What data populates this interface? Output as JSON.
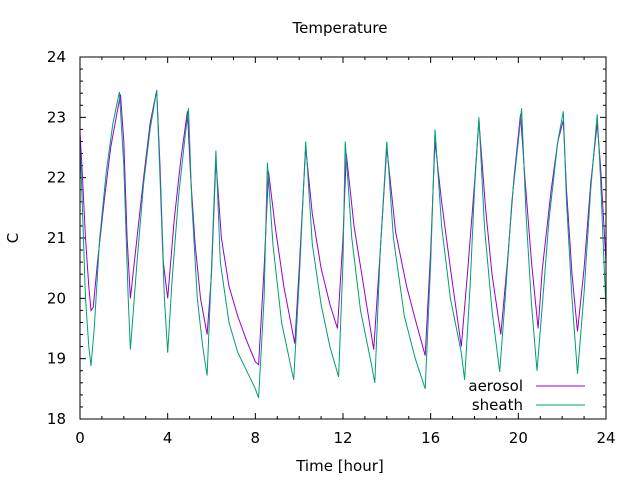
{
  "chart_data": {
    "type": "line",
    "title": "Temperature",
    "xlabel": "Time [hour]",
    "ylabel": "C",
    "xlim": [
      0,
      24
    ],
    "ylim": [
      18,
      24
    ],
    "xticks": [
      0,
      4,
      8,
      12,
      16,
      20,
      24
    ],
    "yticks": [
      18,
      19,
      20,
      21,
      22,
      23,
      24
    ],
    "grid": false,
    "legend_position": "bottom-right",
    "series": [
      {
        "name": "aerosol",
        "color": "#9400d3",
        "points": [
          [
            0.0,
            22.75
          ],
          [
            0.1,
            22.1
          ],
          [
            0.25,
            21.0
          ],
          [
            0.4,
            20.2
          ],
          [
            0.5,
            19.8
          ],
          [
            0.6,
            19.85
          ],
          [
            0.8,
            20.6
          ],
          [
            1.1,
            21.6
          ],
          [
            1.4,
            22.5
          ],
          [
            1.7,
            23.1
          ],
          [
            1.85,
            23.38
          ],
          [
            2.0,
            22.6
          ],
          [
            2.15,
            21.0
          ],
          [
            2.3,
            20.0
          ],
          [
            2.6,
            21.0
          ],
          [
            2.9,
            22.0
          ],
          [
            3.2,
            22.9
          ],
          [
            3.5,
            23.45
          ],
          [
            3.65,
            22.2
          ],
          [
            3.8,
            20.6
          ],
          [
            4.0,
            20.0
          ],
          [
            4.3,
            21.3
          ],
          [
            4.6,
            22.3
          ],
          [
            4.9,
            23.1
          ],
          [
            5.05,
            22.0
          ],
          [
            5.25,
            20.9
          ],
          [
            5.5,
            20.0
          ],
          [
            5.8,
            19.4
          ],
          [
            6.0,
            20.4
          ],
          [
            6.2,
            22.3
          ],
          [
            6.45,
            21.0
          ],
          [
            6.8,
            20.2
          ],
          [
            7.2,
            19.7
          ],
          [
            7.6,
            19.3
          ],
          [
            8.0,
            18.95
          ],
          [
            8.15,
            18.9
          ],
          [
            8.4,
            20.5
          ],
          [
            8.6,
            22.1
          ],
          [
            8.9,
            21.2
          ],
          [
            9.3,
            20.2
          ],
          [
            9.8,
            19.25
          ],
          [
            10.0,
            20.5
          ],
          [
            10.3,
            22.5
          ],
          [
            10.6,
            21.4
          ],
          [
            11.0,
            20.5
          ],
          [
            11.4,
            19.9
          ],
          [
            11.75,
            19.5
          ],
          [
            12.0,
            21.0
          ],
          [
            12.15,
            22.4
          ],
          [
            12.5,
            21.2
          ],
          [
            12.9,
            20.3
          ],
          [
            13.4,
            19.15
          ],
          [
            13.7,
            20.8
          ],
          [
            14.0,
            22.5
          ],
          [
            14.4,
            21.1
          ],
          [
            14.9,
            20.2
          ],
          [
            15.3,
            19.65
          ],
          [
            15.75,
            19.05
          ],
          [
            16.0,
            20.8
          ],
          [
            16.2,
            22.6
          ],
          [
            16.5,
            21.6
          ],
          [
            16.9,
            20.5
          ],
          [
            17.4,
            19.2
          ],
          [
            17.7,
            20.5
          ],
          [
            18.0,
            21.9
          ],
          [
            18.2,
            22.95
          ],
          [
            18.5,
            21.5
          ],
          [
            18.8,
            20.4
          ],
          [
            19.2,
            19.4
          ],
          [
            19.5,
            20.6
          ],
          [
            19.8,
            22.0
          ],
          [
            20.1,
            23.05
          ],
          [
            20.3,
            22.0
          ],
          [
            20.6,
            20.6
          ],
          [
            20.9,
            19.5
          ],
          [
            21.1,
            20.5
          ],
          [
            21.5,
            21.8
          ],
          [
            21.8,
            22.6
          ],
          [
            22.05,
            22.95
          ],
          [
            22.2,
            21.8
          ],
          [
            22.45,
            20.4
          ],
          [
            22.7,
            19.45
          ],
          [
            23.0,
            20.5
          ],
          [
            23.3,
            21.9
          ],
          [
            23.6,
            22.9
          ],
          [
            23.75,
            22.2
          ],
          [
            24.0,
            20.6
          ]
        ]
      },
      {
        "name": "sheath",
        "color": "#009e73",
        "points": [
          [
            0.0,
            22.6
          ],
          [
            0.1,
            21.6
          ],
          [
            0.25,
            20.0
          ],
          [
            0.4,
            19.2
          ],
          [
            0.5,
            18.88
          ],
          [
            0.65,
            19.5
          ],
          [
            0.9,
            21.0
          ],
          [
            1.2,
            22.1
          ],
          [
            1.5,
            22.9
          ],
          [
            1.8,
            23.42
          ],
          [
            2.0,
            22.2
          ],
          [
            2.2,
            20.0
          ],
          [
            2.3,
            19.15
          ],
          [
            2.6,
            20.6
          ],
          [
            2.9,
            21.9
          ],
          [
            3.2,
            22.8
          ],
          [
            3.5,
            23.45
          ],
          [
            3.65,
            22.0
          ],
          [
            3.85,
            20.0
          ],
          [
            4.0,
            19.1
          ],
          [
            4.2,
            20.3
          ],
          [
            4.5,
            21.7
          ],
          [
            4.8,
            22.7
          ],
          [
            4.95,
            23.15
          ],
          [
            5.1,
            21.6
          ],
          [
            5.35,
            20.0
          ],
          [
            5.6,
            19.2
          ],
          [
            5.8,
            18.72
          ],
          [
            6.0,
            20.5
          ],
          [
            6.2,
            22.45
          ],
          [
            6.4,
            20.6
          ],
          [
            6.8,
            19.6
          ],
          [
            7.2,
            19.1
          ],
          [
            7.6,
            18.8
          ],
          [
            8.0,
            18.5
          ],
          [
            8.15,
            18.35
          ],
          [
            8.4,
            20.0
          ],
          [
            8.55,
            22.25
          ],
          [
            8.8,
            20.9
          ],
          [
            9.2,
            19.6
          ],
          [
            9.75,
            18.65
          ],
          [
            10.0,
            20.3
          ],
          [
            10.3,
            22.6
          ],
          [
            10.6,
            20.9
          ],
          [
            11.0,
            19.9
          ],
          [
            11.4,
            19.2
          ],
          [
            11.8,
            18.7
          ],
          [
            12.0,
            20.6
          ],
          [
            12.1,
            22.6
          ],
          [
            12.4,
            21.0
          ],
          [
            12.8,
            19.8
          ],
          [
            13.3,
            18.9
          ],
          [
            13.45,
            18.6
          ],
          [
            13.7,
            20.8
          ],
          [
            14.0,
            22.6
          ],
          [
            14.3,
            21.0
          ],
          [
            14.8,
            19.7
          ],
          [
            15.3,
            19.0
          ],
          [
            15.75,
            18.5
          ],
          [
            16.0,
            20.6
          ],
          [
            16.2,
            22.8
          ],
          [
            16.5,
            21.2
          ],
          [
            16.9,
            20.0
          ],
          [
            17.4,
            19.1
          ],
          [
            17.55,
            18.65
          ],
          [
            17.8,
            20.2
          ],
          [
            18.0,
            21.8
          ],
          [
            18.2,
            23.0
          ],
          [
            18.45,
            21.2
          ],
          [
            18.8,
            19.8
          ],
          [
            19.15,
            18.78
          ],
          [
            19.4,
            20.0
          ],
          [
            19.7,
            21.6
          ],
          [
            20.0,
            22.6
          ],
          [
            20.15,
            23.15
          ],
          [
            20.35,
            21.4
          ],
          [
            20.6,
            19.9
          ],
          [
            20.85,
            18.8
          ],
          [
            21.1,
            19.9
          ],
          [
            21.4,
            21.3
          ],
          [
            21.8,
            22.6
          ],
          [
            22.05,
            23.1
          ],
          [
            22.2,
            21.6
          ],
          [
            22.45,
            20.0
          ],
          [
            22.7,
            18.75
          ],
          [
            23.0,
            20.1
          ],
          [
            23.3,
            21.8
          ],
          [
            23.6,
            23.05
          ],
          [
            23.75,
            22.0
          ],
          [
            24.0,
            19.8
          ]
        ]
      }
    ]
  }
}
